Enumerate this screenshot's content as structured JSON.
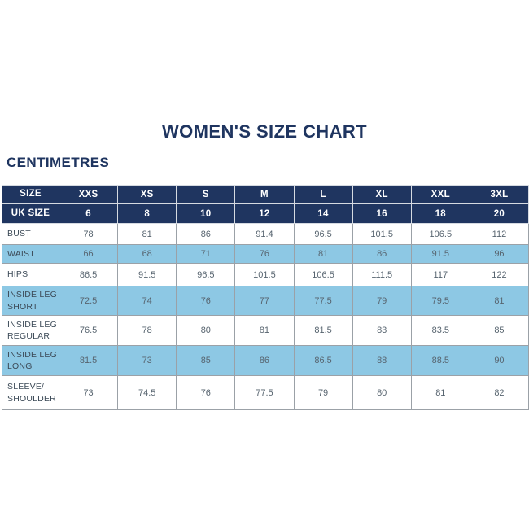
{
  "title": "WOMEN'S SIZE CHART",
  "unit_label": "CENTIMETRES",
  "colors": {
    "page_bg": "#FFFFFF",
    "navy": "#1F3560",
    "light_blue": "#8DC8E4",
    "header_text": "#FFFFFF",
    "label_text": "#3C4A57",
    "value_text": "#57646F",
    "grid_border": "#9BA1A7",
    "navy_divider": "#D5DAE1"
  },
  "table": {
    "header_rows": [
      {
        "label": "SIZE",
        "values": [
          "XXS",
          "XS",
          "S",
          "M",
          "L",
          "XL",
          "XXL",
          "3XL"
        ]
      },
      {
        "label": "UK SIZE",
        "values": [
          "6",
          "8",
          "10",
          "12",
          "14",
          "16",
          "18",
          "20"
        ]
      }
    ],
    "rows": [
      {
        "label": "BUST",
        "values": [
          "78",
          "81",
          "86",
          "91.4",
          "96.5",
          "101.5",
          "106.5",
          "112"
        ]
      },
      {
        "label": "WAIST",
        "values": [
          "66",
          "68",
          "71",
          "76",
          "81",
          "86",
          "91.5",
          "96"
        ]
      },
      {
        "label": "HIPS",
        "values": [
          "86.5",
          "91.5",
          "96.5",
          "101.5",
          "106.5",
          "111.5",
          "117",
          "122"
        ]
      },
      {
        "label": "INSIDE LEG SHORT",
        "values": [
          "72.5",
          "74",
          "76",
          "77",
          "77.5",
          "79",
          "79.5",
          "81"
        ]
      },
      {
        "label": "INSIDE LEG REGULAR",
        "values": [
          "76.5",
          "78",
          "80",
          "81",
          "81.5",
          "83",
          "83.5",
          "85"
        ]
      },
      {
        "label": "INSIDE LEG LONG",
        "values": [
          "81.5",
          "73",
          "85",
          "86",
          "86.5",
          "88",
          "88.5",
          "90"
        ]
      },
      {
        "label": "SLEEVE/ SHOULDER",
        "values": [
          "73",
          "74.5",
          "76",
          "77.5",
          "79",
          "80",
          "81",
          "82"
        ]
      }
    ]
  }
}
